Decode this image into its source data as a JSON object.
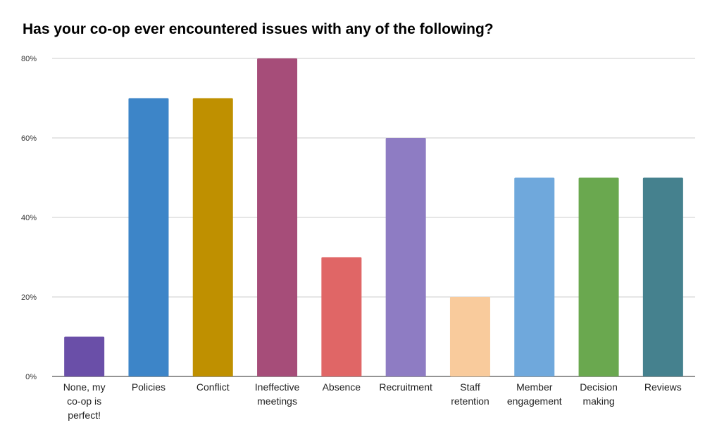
{
  "chart_data": {
    "type": "bar",
    "title": "Has your co-op ever encountered issues with any of the following?",
    "xlabel": "",
    "ylabel": "",
    "ylim": [
      0,
      80
    ],
    "yticks": [
      0,
      20,
      40,
      60,
      80
    ],
    "ytick_labels": [
      "0%",
      "20%",
      "40%",
      "60%",
      "80%"
    ],
    "grid": true,
    "legend": "none",
    "categories": [
      "None, my co-op is perfect!",
      "Policies",
      "Conflict",
      "Ineffective meetings",
      "Absence",
      "Recruitment",
      "Staff retention",
      "Member engagement",
      "Decision making",
      "Reviews"
    ],
    "category_lines": [
      [
        "None, my",
        "co-op is",
        "perfect!"
      ],
      [
        "Policies"
      ],
      [
        "Conflict"
      ],
      [
        "Ineffective",
        "meetings"
      ],
      [
        "Absence"
      ],
      [
        "Recruitment"
      ],
      [
        "Staff",
        "retention"
      ],
      [
        "Member",
        "engagement"
      ],
      [
        "Decision",
        "making"
      ],
      [
        "Reviews"
      ]
    ],
    "values": [
      10,
      70,
      70,
      80,
      30,
      60,
      20,
      50,
      50,
      50
    ],
    "colors": [
      "#6a4fa8",
      "#3d85c8",
      "#bf9000",
      "#a64d79",
      "#e06666",
      "#8e7cc3",
      "#f9cb9c",
      "#6fa8dc",
      "#6aa84f",
      "#45818e"
    ]
  }
}
